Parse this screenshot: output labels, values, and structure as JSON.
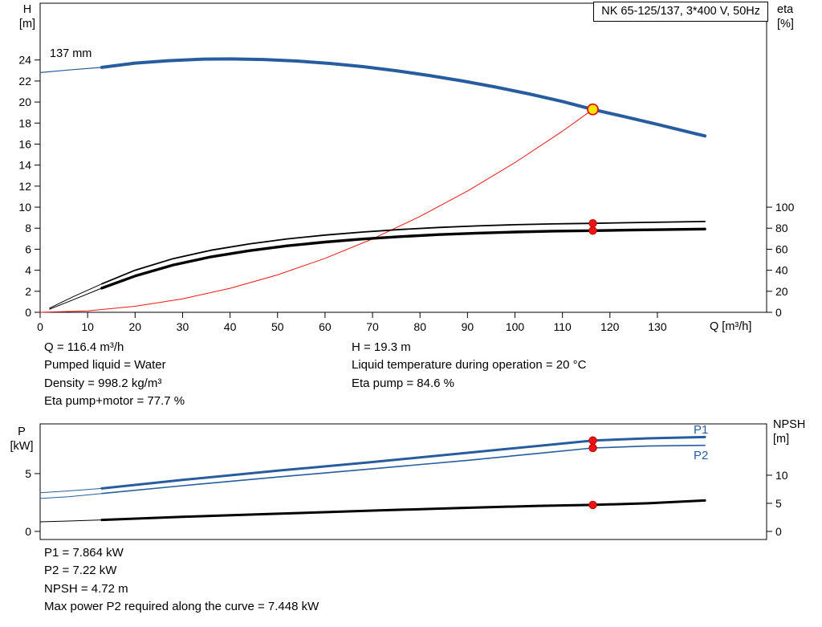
{
  "title_box": "NK 65-125/137, 3*400 V, 50Hz",
  "colors": {
    "curve_blue": "#275C9E",
    "curve_black": "#000000",
    "system_red": "#F01414",
    "duty_fill": "#FFE400",
    "duty_stroke": "#E01010",
    "dot_red": "#EC1313",
    "dot_red_edge": "#B30000"
  },
  "chart_data": [
    {
      "id": "qh-eta-chart",
      "type": "line",
      "x_axis": {
        "label": "Q [m³/h]",
        "range": [
          0,
          153
        ],
        "ticks": [
          0,
          10,
          20,
          30,
          40,
          50,
          60,
          70,
          80,
          90,
          100,
          110,
          120,
          130
        ],
        "show_tick_labels": true
      },
      "y_axis": {
        "label": "H [m]",
        "label_lines": [
          "H",
          "[m]"
        ],
        "range": [
          0,
          29.4
        ],
        "ticks": [
          0,
          2,
          4,
          6,
          8,
          10,
          12,
          14,
          16,
          18,
          20,
          22,
          24
        ]
      },
      "y2_axis": {
        "label": "eta [%]",
        "label_lines": [
          "eta",
          "[%]"
        ],
        "ticks": [
          0,
          20,
          40,
          60,
          80,
          100
        ],
        "to_y_factor": 0.1
      },
      "curve_label": {
        "text": "137 mm"
      },
      "series": [
        {
          "name": "pump-curve-low-flow",
          "axis": "y",
          "color": "#275C9E",
          "width": 1.2,
          "points": [
            [
              0,
              22.8
            ],
            [
              6,
              23.05
            ],
            [
              13,
              23.3
            ]
          ]
        },
        {
          "name": "pump-curve-137mm",
          "axis": "y",
          "color": "#275C9E",
          "width": 4,
          "points": [
            [
              13,
              23.3
            ],
            [
              20,
              23.7
            ],
            [
              27,
              23.93
            ],
            [
              34,
              24.08
            ],
            [
              40,
              24.1
            ],
            [
              47,
              24.05
            ],
            [
              54,
              23.9
            ],
            [
              61,
              23.67
            ],
            [
              68,
              23.37
            ],
            [
              75,
              22.98
            ],
            [
              82,
              22.52
            ],
            [
              89,
              22.0
            ],
            [
              96,
              21.42
            ],
            [
              103,
              20.77
            ],
            [
              110,
              20.05
            ],
            [
              116.4,
              19.3
            ],
            [
              123,
              18.62
            ],
            [
              130,
              17.88
            ],
            [
              137,
              17.1
            ],
            [
              140,
              16.78
            ]
          ]
        },
        {
          "name": "system-curve",
          "axis": "y",
          "color": "#F01414",
          "width": 1,
          "points": [
            [
              0,
              0
            ],
            [
              10,
              0.14
            ],
            [
              20,
              0.57
            ],
            [
              30,
              1.28
            ],
            [
              40,
              2.28
            ],
            [
              50,
              3.56
            ],
            [
              60,
              5.13
            ],
            [
              70,
              6.98
            ],
            [
              80,
              9.12
            ],
            [
              90,
              11.54
            ],
            [
              100,
              14.24
            ],
            [
              110,
              17.23
            ],
            [
              116.4,
              19.3
            ]
          ]
        },
        {
          "name": "eta-pump-curve-low-flow",
          "axis": "y2",
          "color": "#000000",
          "width": 1,
          "points": [
            [
              2,
              4
            ],
            [
              7,
              15
            ],
            [
              13,
              27
            ]
          ]
        },
        {
          "name": "eta-pump-curve",
          "axis": "y2",
          "color": "#000000",
          "width": 1.8,
          "points": [
            [
              13,
              27
            ],
            [
              20,
              40
            ],
            [
              28,
              51
            ],
            [
              36,
              59
            ],
            [
              44,
              65
            ],
            [
              52,
              69.8
            ],
            [
              60,
              73.5
            ],
            [
              68,
              76.4
            ],
            [
              76,
              78.8
            ],
            [
              84,
              80.7
            ],
            [
              92,
              82.2
            ],
            [
              100,
              83.3
            ],
            [
              108,
              84.1
            ],
            [
              116.4,
              84.6
            ],
            [
              124,
              85.2
            ],
            [
              132,
              85.8
            ],
            [
              140,
              86.4
            ]
          ]
        },
        {
          "name": "eta-pump-motor-curve-low-flow",
          "axis": "y2",
          "color": "#000000",
          "width": 1,
          "points": [
            [
              2,
              3
            ],
            [
              7,
              12
            ],
            [
              13,
              23
            ]
          ]
        },
        {
          "name": "eta-pump-motor-curve",
          "axis": "y2",
          "color": "#000000",
          "width": 3.4,
          "points": [
            [
              13,
              23
            ],
            [
              20,
              34.5
            ],
            [
              28,
              45
            ],
            [
              36,
              52.8
            ],
            [
              44,
              58.6
            ],
            [
              52,
              63.2
            ],
            [
              60,
              66.8
            ],
            [
              68,
              69.7
            ],
            [
              76,
              72.0
            ],
            [
              84,
              73.9
            ],
            [
              92,
              75.3
            ],
            [
              100,
              76.4
            ],
            [
              108,
              77.2
            ],
            [
              116.4,
              77.7
            ],
            [
              124,
              78.2
            ],
            [
              132,
              78.7
            ],
            [
              140,
              79.2
            ]
          ]
        }
      ],
      "markers": [
        {
          "name": "duty-point",
          "x": 116.4,
          "value": 19.3,
          "axis": "y",
          "style": "duty"
        },
        {
          "name": "eta-pump-duty-dot",
          "x": 116.4,
          "value": 84.6,
          "axis": "y2",
          "style": "dot"
        },
        {
          "name": "eta-pump-motor-duty-dot",
          "x": 116.4,
          "value": 77.7,
          "axis": "y2",
          "style": "dot"
        }
      ]
    },
    {
      "id": "power-npsh-chart",
      "type": "line",
      "x_axis": {
        "label": "",
        "range": [
          0,
          153
        ],
        "ticks": [],
        "show_tick_labels": false
      },
      "y_axis": {
        "label": "P [kW]",
        "label_lines": [
          "P",
          "[kW]"
        ],
        "range": [
          -0.7,
          9.3
        ],
        "ticks": [
          0,
          5
        ]
      },
      "y2_axis": {
        "label": "NPSH [m]",
        "label_lines": [
          "NPSH",
          "[m]"
        ],
        "ticks": [
          0,
          5,
          10
        ],
        "to_y_factor": 0.486
      },
      "series_labels": [
        {
          "text": "P1"
        },
        {
          "text": "P2"
        }
      ],
      "series": [
        {
          "name": "p1-curve-low-flow",
          "axis": "y",
          "color": "#275C9E",
          "width": 1,
          "points": [
            [
              0,
              3.35
            ],
            [
              6,
              3.5
            ],
            [
              13,
              3.72
            ]
          ]
        },
        {
          "name": "p1-curve",
          "axis": "y",
          "color": "#275C9E",
          "width": 3,
          "points": [
            [
              13,
              3.72
            ],
            [
              30,
              4.45
            ],
            [
              50,
              5.25
            ],
            [
              70,
              6.0
            ],
            [
              90,
              6.8
            ],
            [
              105,
              7.4
            ],
            [
              116.4,
              7.864
            ],
            [
              128,
              8.05
            ],
            [
              140,
              8.16
            ]
          ]
        },
        {
          "name": "p2-curve-low-flow",
          "axis": "y",
          "color": "#275C9E",
          "width": 1,
          "points": [
            [
              0,
              2.85
            ],
            [
              6,
              3.0
            ],
            [
              13,
              3.28
            ]
          ]
        },
        {
          "name": "p2-curve",
          "axis": "y",
          "color": "#275C9E",
          "width": 1.6,
          "points": [
            [
              13,
              3.28
            ],
            [
              30,
              3.95
            ],
            [
              50,
              4.7
            ],
            [
              70,
              5.42
            ],
            [
              90,
              6.15
            ],
            [
              105,
              6.75
            ],
            [
              116.4,
              7.22
            ],
            [
              128,
              7.38
            ],
            [
              140,
              7.448
            ]
          ]
        },
        {
          "name": "npsh-curve-low-flow",
          "axis": "y2",
          "color": "#000000",
          "width": 1,
          "points": [
            [
              0,
              1.7
            ],
            [
              6,
              1.85
            ],
            [
              13,
              2.05
            ]
          ]
        },
        {
          "name": "npsh-curve",
          "axis": "y2",
          "color": "#000000",
          "width": 3,
          "points": [
            [
              13,
              2.05
            ],
            [
              30,
              2.6
            ],
            [
              50,
              3.15
            ],
            [
              70,
              3.7
            ],
            [
              90,
              4.2
            ],
            [
              105,
              4.55
            ],
            [
              116.4,
              4.72
            ],
            [
              128,
              5.0
            ],
            [
              140,
              5.5
            ]
          ]
        }
      ],
      "markers": [
        {
          "name": "p1-duty-dot",
          "x": 116.4,
          "value": 7.864,
          "axis": "y",
          "style": "dot"
        },
        {
          "name": "p2-duty-dot",
          "x": 116.4,
          "value": 7.22,
          "axis": "y",
          "style": "dot"
        },
        {
          "name": "npsh-duty-dot",
          "x": 116.4,
          "value": 4.72,
          "axis": "y2",
          "style": "dot"
        }
      ]
    }
  ],
  "info_top_left": [
    "Q = 116.4 m³/h",
    "Pumped liquid = Water",
    "Density = 998.2 kg/m³",
    "Eta pump+motor = 77.7 %"
  ],
  "info_top_right": [
    "H = 19.3 m",
    "Liquid temperature during operation = 20 °C",
    "Eta pump = 84.6 %"
  ],
  "info_bottom": [
    "P1 = 7.864 kW",
    "P2 = 7.22 kW",
    "NPSH = 4.72 m",
    "Max power P2 required along the curve = 7.448 kW"
  ]
}
